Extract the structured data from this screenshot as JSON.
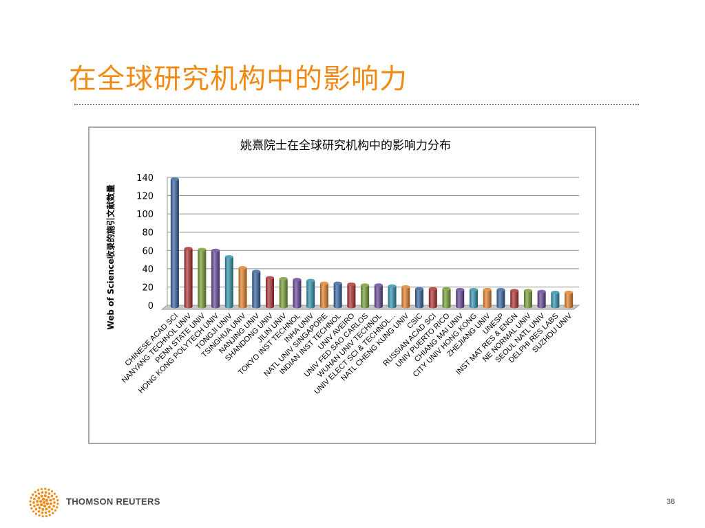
{
  "slide": {
    "title": "在全球研究机构中的影响力",
    "page_number": "38",
    "footer_brand": "THOMSON REUTERS"
  },
  "colors": {
    "title": "#f08a14",
    "logo": "#f08a14",
    "bar_palette": [
      "#2e5d99",
      "#a8292b",
      "#6f9a2e",
      "#5e3f8f",
      "#2b8ca8",
      "#e07b22"
    ]
  },
  "chart_data": {
    "type": "bar",
    "style": "3d-cylinder",
    "title": "姚熹院士在全球研究机构中的影响力分布",
    "xlabel": "",
    "ylabel": "Web of Science收录的施引文献数量",
    "ylim": [
      0,
      140
    ],
    "yticks": [
      0,
      20,
      40,
      60,
      80,
      100,
      120,
      140
    ],
    "grid": true,
    "legend": "none",
    "categories": [
      "CHINESE ACAD SCI",
      "NANYANG TECHNOL UNIV",
      "PENN STATE UNIV",
      "HONG KONG POLYTECH UNIV",
      "TONGJI UNIV",
      "TSINGHUA UNIV",
      "NANJING UNIV",
      "SHANDONG UNIV",
      "JILIN UNIV",
      "TOKYO INST TECHNOL",
      "INHA UNIV",
      "NATL UNIV SINGAPORE",
      "INDIAN INST TECHNOL",
      "UNIV AVEIRO",
      "UNIV FED SAO CARLOS",
      "WUHAN UNIV TECHNOL",
      "UNIV ELECT SCI & TECHNOL...",
      "NATL CHENG KUNG UNIV",
      "CSIC",
      "RUSSIAN ACAD SCI",
      "UNIV PUERTO RICO",
      "CHIANG MAI UNIV",
      "CITY UNIV HONG KONG",
      "ZHEJIANG UNIV",
      "UNESP",
      "INST MAT RES & ENGN",
      "NE NORMAL UNIV",
      "SEOUL NATL UNIV",
      "DELPHI RES LABS",
      "SUZHOU UNIV"
    ],
    "values": [
      138,
      62,
      61,
      60,
      53,
      41,
      37,
      30,
      29,
      28,
      27,
      24,
      24,
      23,
      22,
      22,
      21,
      20,
      18,
      18,
      18,
      17,
      17,
      17,
      17,
      16,
      16,
      15,
      14,
      14
    ]
  }
}
